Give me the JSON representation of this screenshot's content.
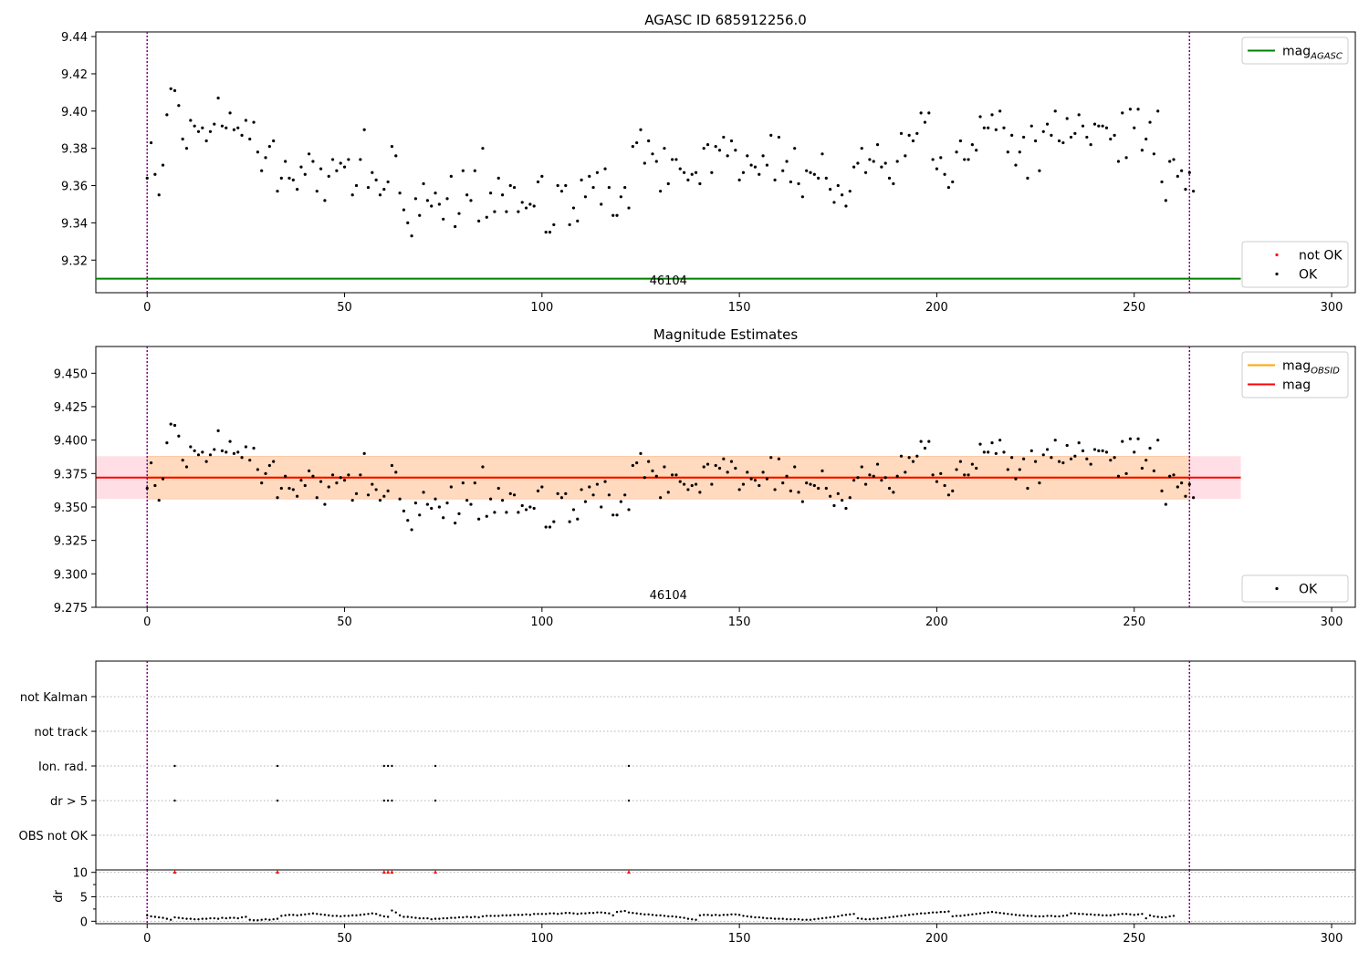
{
  "chart_data": [
    {
      "type": "scatter",
      "title": "AGASC ID 685912256.0",
      "xlim": [
        -13,
        306
      ],
      "ylim": [
        9.3025,
        9.4425
      ],
      "xticks": [
        0,
        50,
        100,
        150,
        200,
        250,
        300
      ],
      "yticks": [
        9.32,
        9.34,
        9.36,
        9.38,
        9.4,
        9.42,
        9.44
      ],
      "ytick_labels": [
        "9.32",
        "9.34",
        "9.36",
        "9.38",
        "9.40",
        "9.42",
        "9.44"
      ],
      "vlines": [
        0,
        264
      ],
      "obsid_label": "46104",
      "obsid_label_x": 132,
      "colors": {
        "ok": "#000000",
        "not_ok": "#ff0000",
        "mag_agasc": "#008000",
        "vline": "#800080"
      },
      "series": [
        {
          "name": "mag_agasc",
          "type": "hline",
          "y": 9.31,
          "x": [
            0,
            277
          ]
        },
        {
          "name": "OK",
          "values": []
        },
        {
          "name": "not OK",
          "values": []
        }
      ],
      "legends": [
        {
          "placement": "top-right",
          "entries": [
            {
              "label": "mag",
              "sub": "AGASC",
              "kind": "line",
              "color": "#008000"
            }
          ]
        },
        {
          "placement": "bottom-right",
          "entries": [
            {
              "label": "not OK",
              "kind": "dot",
              "color": "#ff0000"
            },
            {
              "label": "OK",
              "kind": "dot",
              "color": "#000000"
            }
          ]
        }
      ]
    },
    {
      "type": "scatter",
      "title": "Magnitude Estimates",
      "xlim": [
        -13,
        306
      ],
      "ylim": [
        9.275,
        9.47
      ],
      "xticks": [
        0,
        50,
        100,
        150,
        200,
        250,
        300
      ],
      "yticks": [
        9.275,
        9.3,
        9.325,
        9.35,
        9.375,
        9.4,
        9.425,
        9.45
      ],
      "ytick_labels": [
        "9.275",
        "9.300",
        "9.325",
        "9.350",
        "9.375",
        "9.400",
        "9.425",
        "9.450"
      ],
      "vlines": [
        0,
        264
      ],
      "obsid_label": "46104",
      "obsid_label_x": 132,
      "mag": 9.372,
      "mag_band": [
        9.356,
        9.388
      ],
      "mag_obsid": 9.372,
      "mag_obsid_band": [
        9.356,
        9.388
      ],
      "line_range": [
        -13,
        277
      ],
      "obsid_range": [
        0,
        264
      ],
      "colors": {
        "mag": "#ff0000",
        "mag_obsid": "#ffa500",
        "band": "#ffc0cb",
        "obsid_band": "#ffdab9"
      },
      "legends": [
        {
          "placement": "top-right",
          "entries": [
            {
              "label": "mag",
              "sub": "OBSID",
              "kind": "line",
              "color": "#ffa500"
            },
            {
              "label": "mag",
              "kind": "line",
              "color": "#ff0000"
            }
          ]
        },
        {
          "placement": "bottom-right",
          "entries": [
            {
              "label": "OK",
              "kind": "dot",
              "color": "#000000"
            }
          ]
        }
      ]
    },
    {
      "type": "scatter",
      "categories": [
        "OBS not OK",
        "dr > 5",
        "Ion. rad.",
        "not track",
        "not Kalman"
      ],
      "xlim": [
        -13,
        306
      ],
      "xticks": [
        0,
        50,
        100,
        150,
        200,
        250,
        300
      ],
      "vlines": [
        0,
        264
      ],
      "flags": {
        "OBS not OK": [],
        "dr > 5": [
          7,
          33,
          60,
          61,
          62,
          73,
          122
        ],
        "Ion. rad.": [
          7,
          33,
          60,
          61,
          62,
          73,
          122
        ],
        "not track": [],
        "not Kalman": []
      }
    },
    {
      "type": "scatter",
      "ylabel": "dr",
      "xlim": [
        -13,
        306
      ],
      "ylim": [
        -0.5,
        10.5
      ],
      "xticks": [
        0,
        50,
        100,
        150,
        200,
        250,
        300
      ],
      "yticks": [
        0,
        5,
        10
      ],
      "vlines": [
        0,
        264
      ],
      "dr_outliers": {
        "x": [
          7,
          33,
          60,
          61,
          62,
          73,
          122
        ],
        "y": 10,
        "color": "#ff0000"
      },
      "dr_values": [
        1.2,
        1.0,
        0.9,
        0.8,
        0.7,
        0.5,
        0.3,
        0.8,
        0.7,
        0.6,
        0.5,
        0.5,
        0.4,
        0.4,
        0.5,
        0.5,
        0.6,
        0.6,
        0.5,
        0.7,
        0.6,
        0.7,
        0.7,
        0.6,
        0.8,
        0.9,
        0.3,
        0.2,
        0.2,
        0.3,
        0.4,
        0.3,
        0.4,
        0.5,
        1.1,
        1.2,
        1.3,
        1.3,
        1.2,
        1.3,
        1.4,
        1.5,
        1.6,
        1.5,
        1.4,
        1.3,
        1.2,
        1.1,
        1.1,
        1.0,
        1.1,
        1.1,
        1.2,
        1.2,
        1.3,
        1.4,
        1.5,
        1.6,
        1.5,
        1.2,
        1.0,
        0.9,
        2.2,
        1.8,
        1.2,
        0.9,
        0.9,
        0.8,
        0.7,
        0.6,
        0.6,
        0.6,
        0.4,
        0.5,
        0.5,
        0.6,
        0.6,
        0.7,
        0.7,
        0.8,
        0.8,
        0.9,
        0.8,
        0.9,
        0.8,
        1.0,
        1.1,
        1.1,
        1.1,
        1.1,
        1.2,
        1.2,
        1.2,
        1.3,
        1.3,
        1.3,
        1.4,
        1.3,
        1.5,
        1.5,
        1.5,
        1.5,
        1.6,
        1.6,
        1.5,
        1.6,
        1.7,
        1.7,
        1.6,
        1.5,
        1.6,
        1.6,
        1.7,
        1.7,
        1.8,
        1.8,
        1.7,
        1.6,
        1.2,
        1.9,
        2.0,
        2.1,
        1.8,
        1.7,
        1.6,
        1.5,
        1.4,
        1.4,
        1.3,
        1.2,
        1.2,
        1.1,
        1.0,
        1.0,
        0.9,
        0.8,
        0.7,
        0.5,
        0.4,
        0.3,
        1.2,
        1.3,
        1.3,
        1.2,
        1.3,
        1.2,
        1.3,
        1.3,
        1.4,
        1.4,
        1.3,
        1.1,
        1.0,
        0.9,
        0.8,
        0.8,
        0.7,
        0.6,
        0.6,
        0.5,
        0.5,
        0.5,
        0.4,
        0.4,
        0.4,
        0.4,
        0.3,
        0.3,
        0.3,
        0.4,
        0.5,
        0.6,
        0.7,
        0.8,
        0.9,
        1.0,
        1.2,
        1.3,
        1.4,
        1.5,
        0.6,
        0.5,
        0.4,
        0.4,
        0.5,
        0.5,
        0.6,
        0.7,
        0.8,
        0.9,
        1.0,
        1.1,
        1.2,
        1.3,
        1.4,
        1.5,
        1.6,
        1.6,
        1.7,
        1.8,
        1.8,
        1.9,
        1.9,
        2.0,
        1.0,
        1.1,
        1.1,
        1.2,
        1.3,
        1.4,
        1.5,
        1.6,
        1.7,
        1.8,
        1.9,
        1.8,
        1.7,
        1.6,
        1.5,
        1.4,
        1.3,
        1.2,
        1.2,
        1.1,
        1.1,
        1.0,
        1.0,
        1.0,
        1.1,
        1.1,
        1.0,
        1.0,
        1.1,
        1.2,
        1.6,
        1.6,
        1.5,
        1.5,
        1.4,
        1.4,
        1.3,
        1.3,
        1.2,
        1.2,
        1.2,
        1.3,
        1.4,
        1.5,
        1.5,
        1.4,
        1.3,
        1.4,
        1.5,
        0.6,
        1.2,
        1.0,
        0.9,
        0.8,
        0.8,
        1.0,
        1.1
      ]
    }
  ],
  "mag_values": [
    9.364,
    9.383,
    9.366,
    9.355,
    9.371,
    9.398,
    9.412,
    9.411,
    9.403,
    9.385,
    9.38,
    9.395,
    9.392,
    9.389,
    9.391,
    9.384,
    9.389,
    9.393,
    9.407,
    9.392,
    9.391,
    9.399,
    9.39,
    9.391,
    9.387,
    9.395,
    9.385,
    9.394,
    9.378,
    9.368,
    9.375,
    9.381,
    9.384,
    9.357,
    9.364,
    9.373,
    9.364,
    9.363,
    9.358,
    9.37,
    9.366,
    9.377,
    9.373,
    9.357,
    9.369,
    9.352,
    9.365,
    9.374,
    9.368,
    9.372,
    9.37,
    9.374,
    9.355,
    9.36,
    9.374,
    9.39,
    9.359,
    9.367,
    9.363,
    9.355,
    9.358,
    9.362,
    9.381,
    9.376,
    9.356,
    9.347,
    9.34,
    9.333,
    9.353,
    9.344,
    9.361,
    9.352,
    9.349,
    9.356,
    9.35,
    9.342,
    9.353,
    9.365,
    9.338,
    9.345,
    9.368,
    9.355,
    9.352,
    9.368,
    9.341,
    9.38,
    9.343,
    9.356,
    9.346,
    9.364,
    9.355,
    9.346,
    9.36,
    9.359,
    9.346,
    9.351,
    9.348,
    9.35,
    9.349,
    9.362,
    9.365,
    9.335,
    9.335,
    9.339,
    9.36,
    9.357,
    9.36,
    9.339,
    9.348,
    9.341,
    9.363,
    9.354,
    9.365,
    9.359,
    9.367,
    9.35,
    9.369,
    9.359,
    9.344,
    9.344,
    9.354,
    9.359,
    9.348,
    9.381,
    9.383,
    9.39,
    9.372,
    9.384,
    9.377,
    9.373,
    9.357,
    9.38,
    9.361,
    9.374,
    9.374,
    9.369,
    9.367,
    9.363,
    9.366,
    9.367,
    9.361,
    9.38,
    9.382,
    9.367,
    9.381,
    9.379,
    9.386,
    9.376,
    9.384,
    9.379,
    9.363,
    9.367,
    9.376,
    9.371,
    9.37,
    9.366,
    9.376,
    9.371,
    9.387,
    9.363,
    9.386,
    9.368,
    9.373,
    9.362,
    9.38,
    9.361,
    9.354,
    9.368,
    9.367,
    9.366,
    9.364,
    9.377,
    9.364,
    9.358,
    9.351,
    9.36,
    9.355,
    9.349,
    9.357,
    9.37,
    9.372,
    9.38,
    9.367,
    9.374,
    9.373,
    9.382,
    9.37,
    9.372,
    9.364,
    9.361,
    9.373,
    9.388,
    9.376,
    9.387,
    9.384,
    9.388,
    9.399,
    9.394,
    9.399,
    9.374,
    9.369,
    9.375,
    9.366,
    9.359,
    9.362,
    9.378,
    9.384,
    9.374,
    9.374,
    9.382,
    9.379,
    9.397,
    9.391,
    9.391,
    9.398,
    9.39,
    9.4,
    9.391,
    9.378,
    9.387,
    9.371,
    9.378,
    9.386,
    9.364,
    9.392,
    9.384,
    9.368,
    9.389,
    9.393,
    9.387,
    9.4,
    9.384,
    9.383,
    9.396,
    9.386,
    9.388,
    9.398,
    9.392,
    9.386,
    9.382,
    9.393,
    9.392,
    9.392,
    9.391,
    9.385,
    9.387,
    9.373,
    9.399,
    9.375,
    9.401,
    9.391,
    9.401,
    9.379,
    9.385,
    9.394,
    9.377,
    9.4,
    9.362,
    9.352,
    9.373,
    9.374,
    9.365,
    9.368,
    9.358,
    9.367,
    9.357
  ]
}
